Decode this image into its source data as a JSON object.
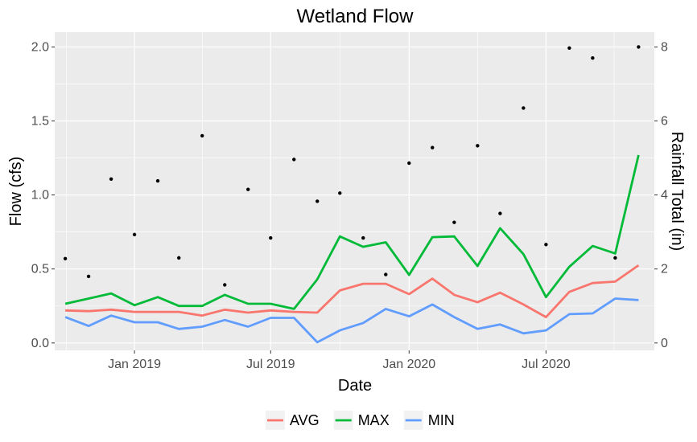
{
  "chart_data": {
    "type": "line",
    "title": "Wetland Flow",
    "xlabel": "Date",
    "ylabel": "Flow (cfs)",
    "y2label": "Rainfall Total (in)",
    "xlim": [
      "2018-09-17",
      "2020-11-22"
    ],
    "ylim": [
      -0.05,
      2.1
    ],
    "y2lim": [
      -0.2,
      8.4
    ],
    "x_ticks": [
      {
        "date": "2019-01-01",
        "label": "Jan 2019"
      },
      {
        "date": "2019-07-01",
        "label": "Jul 2019"
      },
      {
        "date": "2020-01-01",
        "label": "Jan 2020"
      },
      {
        "date": "2020-07-01",
        "label": "Jul 2020"
      }
    ],
    "y_ticks": [
      {
        "value": 0.0,
        "label": "0.0"
      },
      {
        "value": 0.5,
        "label": "0.5"
      },
      {
        "value": 1.0,
        "label": "1.0"
      },
      {
        "value": 1.5,
        "label": "1.5"
      },
      {
        "value": 2.0,
        "label": "2.0"
      }
    ],
    "y2_ticks": [
      {
        "value": 0,
        "label": "0"
      },
      {
        "value": 2,
        "label": "2"
      },
      {
        "value": 4,
        "label": "4"
      },
      {
        "value": 6,
        "label": "6"
      },
      {
        "value": 8,
        "label": "8"
      }
    ],
    "grid": true,
    "legend_position": "bottom",
    "x": [
      "2018-10-01",
      "2018-11-01",
      "2018-12-01",
      "2019-01-01",
      "2019-02-01",
      "2019-03-01",
      "2019-04-01",
      "2019-05-01",
      "2019-06-01",
      "2019-07-01",
      "2019-08-01",
      "2019-09-01",
      "2019-10-01",
      "2019-11-01",
      "2019-12-01",
      "2020-01-01",
      "2020-02-01",
      "2020-03-01",
      "2020-04-01",
      "2020-05-01",
      "2020-06-01",
      "2020-07-01",
      "2020-08-01",
      "2020-09-01",
      "2020-10-01",
      "2020-11-01"
    ],
    "series": [
      {
        "name": "AVG",
        "color": "#f8766d",
        "values": [
          0.22,
          0.215,
          0.225,
          0.21,
          0.21,
          0.21,
          0.185,
          0.225,
          0.205,
          0.22,
          0.21,
          0.205,
          0.355,
          0.4,
          0.4,
          0.33,
          0.435,
          0.325,
          0.275,
          0.34,
          0.26,
          0.175,
          0.345,
          0.405,
          0.415,
          0.525
        ]
      },
      {
        "name": "MAX",
        "color": "#00ba38",
        "values": [
          0.265,
          0.3,
          0.335,
          0.255,
          0.31,
          0.25,
          0.25,
          0.325,
          0.265,
          0.265,
          0.23,
          0.43,
          0.72,
          0.65,
          0.68,
          0.46,
          0.715,
          0.72,
          0.52,
          0.775,
          0.6,
          0.31,
          0.515,
          0.655,
          0.605,
          1.27
        ]
      },
      {
        "name": "MIN",
        "color": "#619cff",
        "values": [
          0.175,
          0.115,
          0.185,
          0.14,
          0.14,
          0.095,
          0.11,
          0.155,
          0.11,
          0.17,
          0.17,
          0.005,
          0.085,
          0.135,
          0.23,
          0.18,
          0.26,
          0.175,
          0.095,
          0.125,
          0.065,
          0.085,
          0.195,
          0.2,
          0.3,
          0.29
        ]
      }
    ],
    "rainfall": {
      "color": "#000000",
      "axis": "right",
      "points": [
        {
          "date": "2018-10-01",
          "value": 2.28
        },
        {
          "date": "2018-11-01",
          "value": 1.8
        },
        {
          "date": "2018-12-01",
          "value": 4.43
        },
        {
          "date": "2019-01-01",
          "value": 2.93
        },
        {
          "date": "2019-02-01",
          "value": 4.38
        },
        {
          "date": "2019-03-01",
          "value": 2.3
        },
        {
          "date": "2019-04-01",
          "value": 5.6
        },
        {
          "date": "2019-05-01",
          "value": 1.57
        },
        {
          "date": "2019-06-01",
          "value": 4.15
        },
        {
          "date": "2019-07-01",
          "value": 2.84
        },
        {
          "date": "2019-08-01",
          "value": 4.96
        },
        {
          "date": "2019-09-01",
          "value": 3.83
        },
        {
          "date": "2019-10-01",
          "value": 4.05
        },
        {
          "date": "2019-11-01",
          "value": 2.84
        },
        {
          "date": "2019-12-01",
          "value": 1.85
        },
        {
          "date": "2020-01-01",
          "value": 4.86
        },
        {
          "date": "2020-02-01",
          "value": 5.28
        },
        {
          "date": "2020-03-01",
          "value": 3.26
        },
        {
          "date": "2020-04-01",
          "value": 5.33
        },
        {
          "date": "2020-05-01",
          "value": 3.5
        },
        {
          "date": "2020-06-01",
          "value": 6.35
        },
        {
          "date": "2020-07-01",
          "value": 2.66
        },
        {
          "date": "2020-08-01",
          "value": 7.97
        },
        {
          "date": "2020-09-01",
          "value": 7.7
        },
        {
          "date": "2020-10-01",
          "value": 2.3
        },
        {
          "date": "2020-11-01",
          "value": 8.0
        }
      ]
    }
  }
}
